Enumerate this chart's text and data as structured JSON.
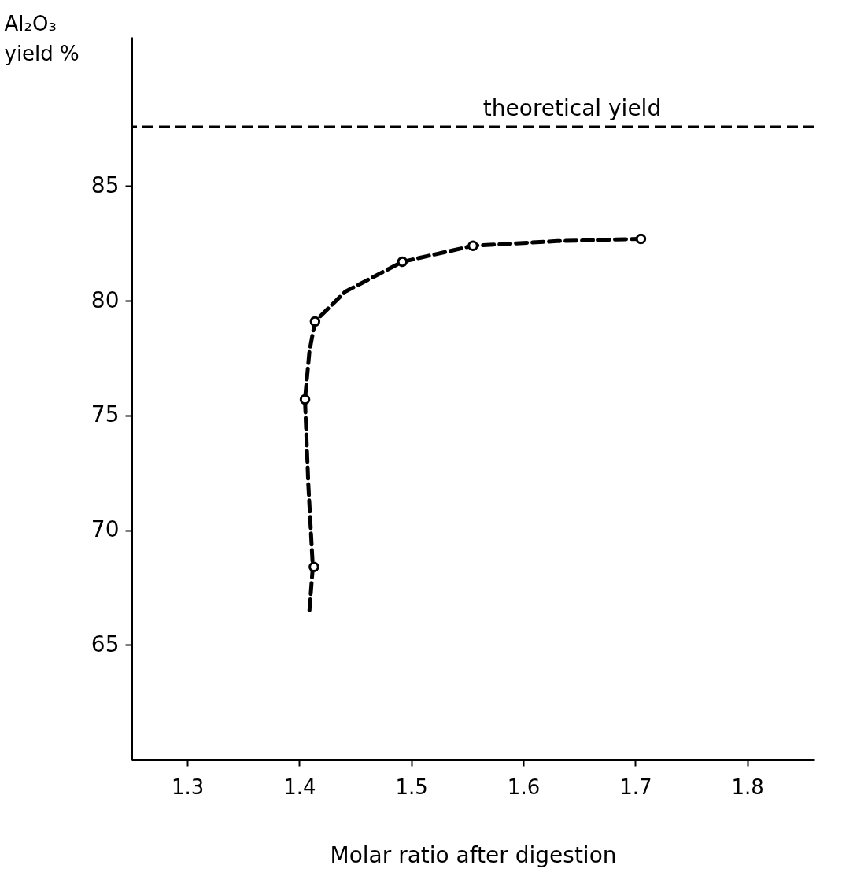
{
  "chart_data": {
    "type": "line",
    "xlabel": "Molar ratio after digestion",
    "ylabel": "Al₂O₃ yield %",
    "xlim": [
      1.25,
      1.86
    ],
    "ylim": [
      60,
      91.5
    ],
    "xticks": [
      1.3,
      1.4,
      1.5,
      1.6,
      1.7,
      1.8
    ],
    "yticks": [
      65,
      70,
      75,
      80,
      85
    ],
    "grid": false,
    "series": [
      {
        "type": "line",
        "color": "#000000",
        "line_style": "dashed",
        "x": [
          1.409,
          1.412,
          1.408,
          1.405,
          1.409,
          1.414,
          1.441,
          1.492,
          1.555,
          1.63,
          1.705
        ],
        "values": [
          66.5,
          68.4,
          72,
          75.7,
          77.8,
          79.1,
          80.4,
          81.7,
          82.4,
          82.6,
          82.7
        ]
      },
      {
        "type": "scatter",
        "color": "#000000",
        "marker": "circle",
        "x": [
          1.413,
          1.405,
          1.414,
          1.492,
          1.555,
          1.705
        ],
        "values": [
          68.4,
          75.7,
          79.1,
          81.7,
          82.4,
          82.7
        ]
      }
    ],
    "ref_lines": [
      {
        "axis": "y",
        "value": 87.6,
        "label": "theoretical yield",
        "color": "#000000",
        "line_style": "dashed"
      }
    ]
  }
}
